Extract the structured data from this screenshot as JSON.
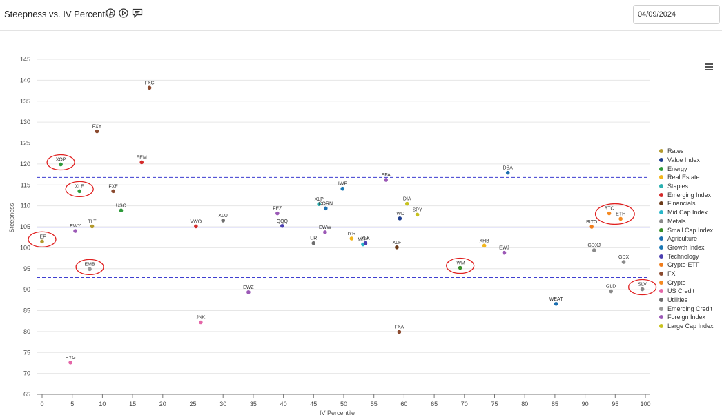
{
  "header": {
    "title": "Steepness vs. IV Percentile",
    "icons": [
      "info-icon",
      "play-icon",
      "comment-icon"
    ],
    "date_value": "04/09/2024"
  },
  "chart_data": {
    "type": "scatter",
    "xlabel": "IV Percentile",
    "ylabel": "Steepness",
    "xlim": [
      0,
      100
    ],
    "ylim": [
      65,
      145
    ],
    "xticks": [
      0,
      5,
      10,
      15,
      20,
      25,
      30,
      35,
      40,
      45,
      50,
      55,
      60,
      65,
      70,
      75,
      80,
      85,
      90,
      95,
      100
    ],
    "yticks": [
      65,
      70,
      75,
      80,
      85,
      90,
      95,
      100,
      105,
      110,
      115,
      120,
      125,
      130,
      135,
      140,
      145
    ],
    "grid": "horizontal",
    "legend_position": "right",
    "reference_lines": [
      {
        "y": 116.8,
        "style": "dashed",
        "color": "#3f3fd0"
      },
      {
        "y": 104.9,
        "style": "solid",
        "color": "#3f3fd0"
      },
      {
        "y": 92.9,
        "style": "dashed",
        "color": "#3f3fd0"
      }
    ],
    "categories": [
      {
        "name": "Rates",
        "color": "#b39a2e"
      },
      {
        "name": "Value Index",
        "color": "#1f3f8f"
      },
      {
        "name": "Energy",
        "color": "#2e9a3a"
      },
      {
        "name": "Real Estate",
        "color": "#f2b61c"
      },
      {
        "name": "Staples",
        "color": "#2bb0b0"
      },
      {
        "name": "Emerging Index",
        "color": "#d42a2a"
      },
      {
        "name": "Financials",
        "color": "#6b3a18"
      },
      {
        "name": "Mid Cap Index",
        "color": "#28b6c8"
      },
      {
        "name": "Metals",
        "color": "#8a8a8a"
      },
      {
        "name": "Small Cap Index",
        "color": "#3a8f2a"
      },
      {
        "name": "Agriculture",
        "color": "#1c6fb0"
      },
      {
        "name": "Growth Index",
        "color": "#1a78b4"
      },
      {
        "name": "Technology",
        "color": "#4b3fb0"
      },
      {
        "name": "Crypto-ETF",
        "color": "#f07d1c"
      },
      {
        "name": "FX",
        "color": "#8b4a2f"
      },
      {
        "name": "Crypto",
        "color": "#f58a22"
      },
      {
        "name": "US Credit",
        "color": "#e466a8"
      },
      {
        "name": "Utilities",
        "color": "#6e6e6e"
      },
      {
        "name": "Emerging Credit",
        "color": "#9a9a9a"
      },
      {
        "name": "Foreign Index",
        "color": "#9b59b6"
      },
      {
        "name": "Large Cap Index",
        "color": "#c8c21e"
      }
    ],
    "points": [
      {
        "label": "FXC",
        "x": 17.8,
        "y": 138.2,
        "category": "FX"
      },
      {
        "label": "FXY",
        "x": 9.1,
        "y": 127.8,
        "category": "FX"
      },
      {
        "label": "XOP",
        "x": 3.1,
        "y": 119.9,
        "category": "Energy"
      },
      {
        "label": "EEM",
        "x": 16.5,
        "y": 120.4,
        "category": "Emerging Index"
      },
      {
        "label": "XLE",
        "x": 6.2,
        "y": 113.5,
        "category": "Energy"
      },
      {
        "label": "FXE",
        "x": 11.8,
        "y": 113.5,
        "category": "FX"
      },
      {
        "label": "USO",
        "x": 13.1,
        "y": 108.9,
        "category": "Energy"
      },
      {
        "label": "EWY",
        "x": 5.5,
        "y": 104.0,
        "category": "Foreign Index"
      },
      {
        "label": "TLT",
        "x": 8.3,
        "y": 105.1,
        "category": "Rates"
      },
      {
        "label": "IEF",
        "x": 0.0,
        "y": 101.5,
        "category": "Rates"
      },
      {
        "label": "EMB",
        "x": 7.9,
        "y": 94.9,
        "category": "Emerging Credit"
      },
      {
        "label": "VWO",
        "x": 25.5,
        "y": 105.1,
        "category": "Emerging Index"
      },
      {
        "label": "XLU",
        "x": 30.0,
        "y": 106.5,
        "category": "Utilities"
      },
      {
        "label": "FEZ",
        "x": 39.0,
        "y": 108.2,
        "category": "Foreign Index"
      },
      {
        "label": "QQQ",
        "x": 39.8,
        "y": 105.2,
        "category": "Technology"
      },
      {
        "label": "EWZ",
        "x": 34.2,
        "y": 89.4,
        "category": "Foreign Index"
      },
      {
        "label": "JNK",
        "x": 26.3,
        "y": 82.2,
        "category": "US Credit"
      },
      {
        "label": "HYG",
        "x": 4.7,
        "y": 72.6,
        "category": "US Credit"
      },
      {
        "label": "XLP",
        "x": 45.9,
        "y": 110.4,
        "category": "Staples"
      },
      {
        "label": "CORN",
        "x": 47.0,
        "y": 109.4,
        "category": "Agriculture"
      },
      {
        "label": "IWF",
        "x": 49.8,
        "y": 114.1,
        "category": "Growth Index"
      },
      {
        "label": "EWW",
        "x": 46.9,
        "y": 103.7,
        "category": "Foreign Index"
      },
      {
        "label": "UR",
        "x": 45.0,
        "y": 101.1,
        "category": "Utilities"
      },
      {
        "label": "IYR",
        "x": 51.3,
        "y": 102.2,
        "category": "Real Estate"
      },
      {
        "label": "MDY",
        "x": 53.2,
        "y": 100.8,
        "category": "Mid Cap Index"
      },
      {
        "label": "XLK",
        "x": 53.6,
        "y": 101.1,
        "category": "Technology"
      },
      {
        "label": "EFA",
        "x": 57.0,
        "y": 116.2,
        "category": "Foreign Index"
      },
      {
        "label": "DIA",
        "x": 60.5,
        "y": 110.5,
        "category": "Large Cap Index"
      },
      {
        "label": "IWD",
        "x": 59.3,
        "y": 107.0,
        "category": "Value Index"
      },
      {
        "label": "SPY",
        "x": 62.2,
        "y": 107.9,
        "category": "Large Cap Index"
      },
      {
        "label": "XLF",
        "x": 58.8,
        "y": 100.1,
        "category": "Financials"
      },
      {
        "label": "FXA",
        "x": 59.2,
        "y": 79.9,
        "category": "FX"
      },
      {
        "label": "IWM",
        "x": 69.3,
        "y": 95.2,
        "category": "Small Cap Index"
      },
      {
        "label": "XHB",
        "x": 73.3,
        "y": 100.5,
        "category": "Real Estate"
      },
      {
        "label": "EWJ",
        "x": 76.6,
        "y": 98.8,
        "category": "Foreign Index"
      },
      {
        "label": "DBA",
        "x": 77.2,
        "y": 117.9,
        "category": "Agriculture"
      },
      {
        "label": "WEAT",
        "x": 85.2,
        "y": 86.6,
        "category": "Agriculture"
      },
      {
        "label": "BITO",
        "x": 91.1,
        "y": 105.0,
        "category": "Crypto-ETF"
      },
      {
        "label": "BTC",
        "x": 94.0,
        "y": 108.2,
        "category": "Crypto"
      },
      {
        "label": "ETH",
        "x": 95.9,
        "y": 106.9,
        "category": "Crypto"
      },
      {
        "label": "GDXJ",
        "x": 91.5,
        "y": 99.4,
        "category": "Metals"
      },
      {
        "label": "GDX",
        "x": 96.4,
        "y": 96.6,
        "category": "Metals"
      },
      {
        "label": "GLD",
        "x": 94.3,
        "y": 89.6,
        "category": "Metals"
      },
      {
        "label": "SLV",
        "x": 99.5,
        "y": 90.1,
        "category": "Metals"
      }
    ],
    "annotations": {
      "type": "hand-drawn circles",
      "color": "#e02020",
      "targets": [
        "XOP",
        "XLE",
        "IEF",
        "EMB",
        "IWM",
        "BTC",
        "ETH",
        "SLV"
      ]
    }
  }
}
